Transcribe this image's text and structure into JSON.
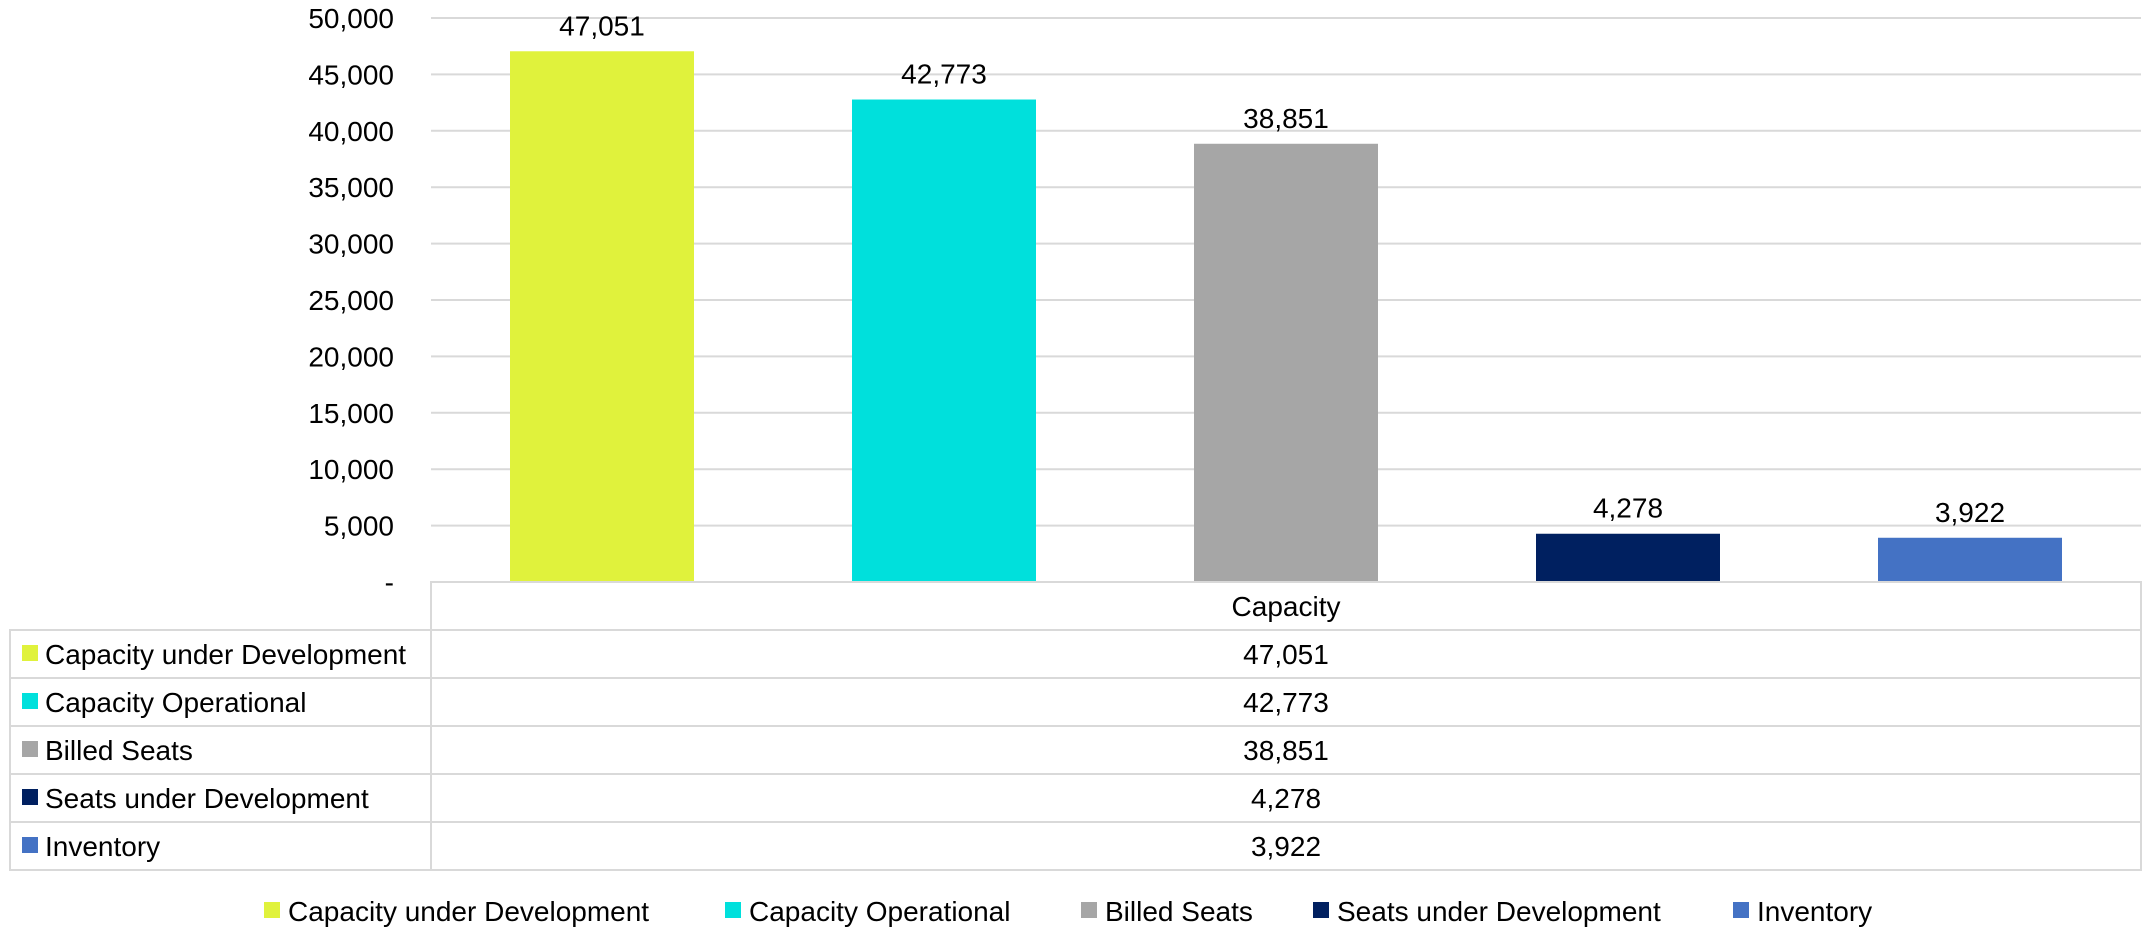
{
  "chart_data": {
    "type": "bar",
    "category": "Capacity",
    "ylim": [
      0,
      50000
    ],
    "y_ticks": [
      "-",
      "5,000",
      "10,000",
      "15,000",
      "20,000",
      "25,000",
      "30,000",
      "35,000",
      "40,000",
      "45,000",
      "50,000"
    ],
    "grid": true,
    "legend_position": "bottom",
    "series": [
      {
        "name": "Capacity under Development",
        "value": 47051,
        "label": "47,051",
        "color": "#e0f23c"
      },
      {
        "name": "Capacity Operational",
        "value": 42773,
        "label": "42,773",
        "color": "#00e0dc"
      },
      {
        "name": "Billed Seats",
        "value": 38851,
        "label": "38,851",
        "color": "#a6a6a6"
      },
      {
        "name": "Seats under Development",
        "value": 4278,
        "label": "4,278",
        "color": "#002060"
      },
      {
        "name": "Inventory",
        "value": 3922,
        "label": "3,922",
        "color": "#4472c4"
      }
    ]
  }
}
